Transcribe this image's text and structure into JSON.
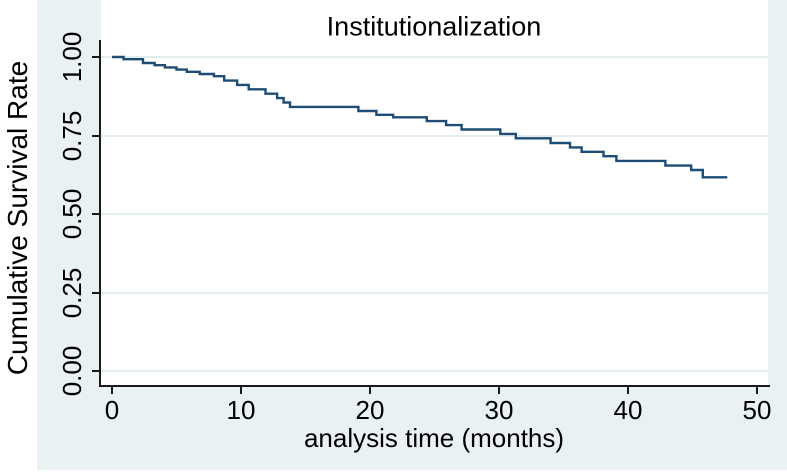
{
  "title": "Institutionalization",
  "axes": {
    "y_label": "Cumulative Survival Rate",
    "x_label": "analysis time (months)",
    "y_ticks": [
      "1.00",
      "0.75",
      "0.50",
      "0.25",
      "0.00"
    ],
    "x_ticks": [
      "0",
      "10",
      "20",
      "30",
      "40",
      "50"
    ]
  },
  "colors": {
    "curve": "#1d4d75",
    "frame_background": "#eaf1f3",
    "gridline": "#e2edf0",
    "axis": "#1a1a1a"
  },
  "chart_data": {
    "type": "line",
    "subtype": "kaplan-meier-step",
    "title": "Institutionalization",
    "xlabel": "analysis time (months)",
    "ylabel": "Cumulative Survival Rate",
    "xlim": [
      0,
      50
    ],
    "ylim": [
      0,
      1
    ],
    "x_tick_values": [
      0,
      10,
      20,
      30,
      40,
      50
    ],
    "y_tick_values": [
      1.0,
      0.75,
      0.5,
      0.25,
      0.0
    ],
    "grid": "horizontal",
    "legend": "none",
    "series": [
      {
        "name": "Institutionalization",
        "step_points": [
          [
            0.0,
            1.0
          ],
          [
            0.9,
            0.993
          ],
          [
            2.4,
            0.981
          ],
          [
            3.3,
            0.974
          ],
          [
            4.1,
            0.967
          ],
          [
            5.0,
            0.96
          ],
          [
            5.8,
            0.953
          ],
          [
            6.8,
            0.946
          ],
          [
            7.9,
            0.939
          ],
          [
            8.7,
            0.925
          ],
          [
            9.7,
            0.911
          ],
          [
            10.6,
            0.897
          ],
          [
            11.9,
            0.883
          ],
          [
            12.8,
            0.869
          ],
          [
            13.3,
            0.855
          ],
          [
            13.8,
            0.841
          ],
          [
            19.1,
            0.828
          ],
          [
            20.5,
            0.816
          ],
          [
            21.8,
            0.808
          ],
          [
            24.4,
            0.796
          ],
          [
            25.9,
            0.783
          ],
          [
            27.1,
            0.769
          ],
          [
            30.1,
            0.755
          ],
          [
            31.3,
            0.741
          ],
          [
            34.0,
            0.726
          ],
          [
            35.5,
            0.712
          ],
          [
            36.4,
            0.698
          ],
          [
            38.1,
            0.684
          ],
          [
            39.1,
            0.669
          ],
          [
            42.9,
            0.654
          ],
          [
            44.9,
            0.64
          ],
          [
            45.8,
            0.617
          ],
          [
            47.7,
            0.617
          ]
        ]
      }
    ]
  }
}
